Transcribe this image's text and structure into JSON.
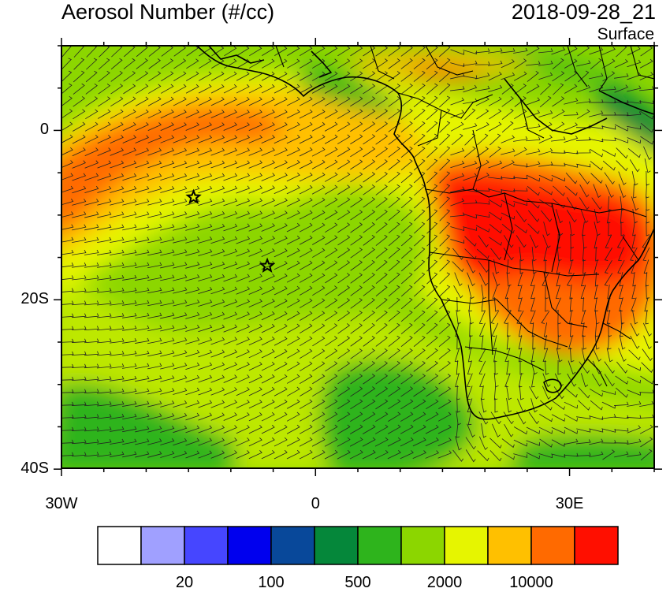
{
  "title": "Aerosol Number (#/cc)",
  "datetime": "2018-09-28_21",
  "level": "Surface",
  "lat_labels": [
    {
      "lat": 0,
      "label": "0"
    },
    {
      "lat": -20,
      "label": "20S"
    },
    {
      "lat": -40,
      "label": "40S"
    }
  ],
  "lon_labels": [
    {
      "lon": -30,
      "label": "30W"
    },
    {
      "lon": 0,
      "label": "0"
    },
    {
      "lon": 30,
      "label": "30E"
    }
  ],
  "colorbar": {
    "colors": [
      "#ffffff",
      "#a0a0ff",
      "#4646ff",
      "#0000ee",
      "#08489a",
      "#05873a",
      "#2eb41c",
      "#8cd600",
      "#e6f500",
      "#ffc000",
      "#ff6a00",
      "#ff0f00"
    ],
    "labels": [
      {
        "after_box": 2,
        "text": "20"
      },
      {
        "after_box": 4,
        "text": "100"
      },
      {
        "after_box": 6,
        "text": "500"
      },
      {
        "after_box": 8,
        "text": "2000"
      },
      {
        "after_box": 10,
        "text": "10000"
      }
    ]
  },
  "markers": [
    {
      "name": "star-marker-1",
      "lon": -14.4,
      "lat": -7.9
    },
    {
      "name": "star-marker-2",
      "lon": -5.7,
      "lat": -16.0
    }
  ]
}
